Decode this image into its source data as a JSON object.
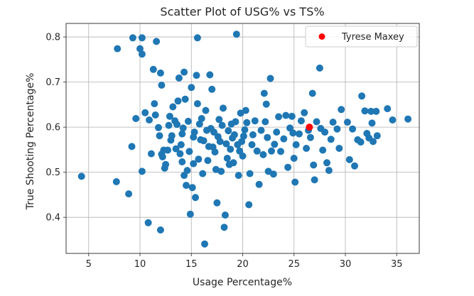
{
  "chart_data": {
    "type": "scatter",
    "title": "Scatter Plot of USG% vs TS%",
    "xlabel": "Usage Percentage%",
    "ylabel": "True Shooting Percentage%",
    "xlim": [
      2.8,
      37.2
    ],
    "ylim": [
      0.32,
      0.83
    ],
    "xticks": [
      5,
      10,
      15,
      20,
      25,
      30,
      35
    ],
    "yticks": [
      0.4,
      0.5,
      0.6,
      0.7,
      0.8
    ],
    "grid": true,
    "legend_position": "top-right",
    "colors": {
      "base": "#1f77b4",
      "highlight": "#ff0000"
    },
    "series": [
      {
        "values": [
          [
            4.3,
            0.491
          ],
          [
            7.7,
            0.479
          ],
          [
            7.8,
            0.774
          ],
          [
            8.9,
            0.452
          ],
          [
            9.2,
            0.557
          ],
          [
            9.3,
            0.798
          ],
          [
            9.6,
            0.619
          ],
          [
            10.0,
            0.774
          ],
          [
            10.2,
            0.798
          ],
          [
            10.2,
            0.762
          ],
          [
            10.2,
            0.502
          ],
          [
            10.5,
            0.632
          ],
          [
            10.8,
            0.388
          ],
          [
            10.9,
            0.616
          ],
          [
            11.1,
            0.541
          ],
          [
            11.3,
            0.728
          ],
          [
            11.4,
            0.652
          ],
          [
            11.6,
            0.79
          ],
          [
            11.5,
            0.627
          ],
          [
            11.8,
            0.599
          ],
          [
            11.9,
            0.581
          ],
          [
            12.0,
            0.72
          ],
          [
            12.1,
            0.693
          ],
          [
            12.1,
            0.54
          ],
          [
            12.0,
            0.372
          ],
          [
            12.2,
            0.534
          ],
          [
            12.3,
            0.549
          ],
          [
            12.4,
            0.509
          ],
          [
            12.5,
            0.517
          ],
          [
            12.7,
            0.549
          ],
          [
            12.8,
            0.604
          ],
          [
            12.9,
            0.624
          ],
          [
            13.0,
            0.571
          ],
          [
            13.1,
            0.581
          ],
          [
            13.2,
            0.645
          ],
          [
            13.4,
            0.614
          ],
          [
            13.5,
            0.552
          ],
          [
            13.6,
            0.606
          ],
          [
            13.7,
            0.658
          ],
          [
            13.8,
            0.709
          ],
          [
            13.9,
            0.541
          ],
          [
            14.0,
            0.561
          ],
          [
            14.1,
            0.585
          ],
          [
            14.1,
            0.523
          ],
          [
            14.2,
            0.598
          ],
          [
            14.3,
            0.722
          ],
          [
            14.3,
            0.493
          ],
          [
            14.4,
            0.662
          ],
          [
            14.5,
            0.471
          ],
          [
            14.6,
            0.504
          ],
          [
            14.7,
            0.613
          ],
          [
            14.8,
            0.546
          ],
          [
            14.9,
            0.407
          ],
          [
            15.0,
            0.688
          ],
          [
            15.1,
            0.466
          ],
          [
            15.2,
            0.578
          ],
          [
            15.2,
            0.519
          ],
          [
            15.3,
            0.589
          ],
          [
            15.4,
            0.444
          ],
          [
            15.5,
            0.715
          ],
          [
            15.6,
            0.798
          ],
          [
            15.6,
            0.652
          ],
          [
            15.7,
            0.529
          ],
          [
            15.8,
            0.607
          ],
          [
            15.9,
            0.572
          ],
          [
            16.0,
            0.619
          ],
          [
            16.1,
            0.497
          ],
          [
            16.2,
            0.57
          ],
          [
            16.3,
            0.341
          ],
          [
            16.4,
            0.637
          ],
          [
            16.5,
            0.593
          ],
          [
            16.6,
            0.526
          ],
          [
            16.7,
            0.557
          ],
          [
            16.8,
            0.716
          ],
          [
            16.9,
            0.597
          ],
          [
            17.0,
            0.684
          ],
          [
            17.1,
            0.556
          ],
          [
            17.2,
            0.589
          ],
          [
            17.3,
            0.545
          ],
          [
            17.4,
            0.506
          ],
          [
            17.5,
            0.432
          ],
          [
            17.6,
            0.579
          ],
          [
            17.7,
            0.617
          ],
          [
            17.8,
            0.568
          ],
          [
            17.9,
            0.502
          ],
          [
            18.0,
            0.604
          ],
          [
            18.1,
            0.642
          ],
          [
            18.2,
            0.378
          ],
          [
            18.3,
            0.405
          ],
          [
            18.4,
            0.563
          ],
          [
            18.5,
            0.531
          ],
          [
            18.6,
            0.592
          ],
          [
            18.7,
            0.517
          ],
          [
            18.8,
            0.551
          ],
          [
            18.9,
            0.607
          ],
          [
            19.0,
            0.576
          ],
          [
            19.1,
            0.521
          ],
          [
            19.2,
            0.583
          ],
          [
            19.3,
            0.612
          ],
          [
            19.4,
            0.806
          ],
          [
            19.5,
            0.561
          ],
          [
            19.6,
            0.493
          ],
          [
            19.7,
            0.547
          ],
          [
            19.8,
            0.631
          ],
          [
            19.9,
            0.568
          ],
          [
            20.0,
            0.536
          ],
          [
            20.1,
            0.58
          ],
          [
            20.2,
            0.594
          ],
          [
            20.3,
            0.637
          ],
          [
            20.4,
            0.61
          ],
          [
            20.6,
            0.428
          ],
          [
            20.7,
            0.497
          ],
          [
            20.9,
            0.561
          ],
          [
            21.0,
            0.583
          ],
          [
            21.2,
            0.614
          ],
          [
            21.4,
            0.547
          ],
          [
            21.6,
            0.473
          ],
          [
            21.8,
            0.593
          ],
          [
            22.0,
            0.539
          ],
          [
            22.1,
            0.675
          ],
          [
            22.2,
            0.612
          ],
          [
            22.3,
            0.651
          ],
          [
            22.4,
            0.577
          ],
          [
            22.5,
            0.502
          ],
          [
            22.7,
            0.708
          ],
          [
            22.8,
            0.547
          ],
          [
            23.0,
            0.496
          ],
          [
            23.1,
            0.562
          ],
          [
            23.3,
            0.589
          ],
          [
            23.5,
            0.623
          ],
          [
            23.7,
            0.546
          ],
          [
            24.0,
            0.574
          ],
          [
            24.2,
            0.626
          ],
          [
            24.4,
            0.511
          ],
          [
            24.6,
            0.598
          ],
          [
            24.8,
            0.624
          ],
          [
            24.9,
            0.587
          ],
          [
            25.0,
            0.531
          ],
          [
            25.1,
            0.478
          ],
          [
            25.2,
            0.561
          ],
          [
            25.5,
            0.585
          ],
          [
            25.7,
            0.614
          ],
          [
            26.0,
            0.632
          ],
          [
            26.2,
            0.553
          ],
          [
            26.4,
            0.593
          ],
          [
            26.6,
            0.577
          ],
          [
            26.8,
            0.675
          ],
          [
            26.9,
            0.516
          ],
          [
            27.0,
            0.483
          ],
          [
            27.2,
            0.612
          ],
          [
            27.5,
            0.731
          ],
          [
            27.6,
            0.597
          ],
          [
            27.8,
            0.549
          ],
          [
            28.0,
            0.589
          ],
          [
            28.2,
            0.521
          ],
          [
            28.4,
            0.504
          ],
          [
            28.6,
            0.573
          ],
          [
            28.8,
            0.611
          ],
          [
            29.2,
            0.596
          ],
          [
            29.4,
            0.553
          ],
          [
            29.6,
            0.639
          ],
          [
            30.2,
            0.611
          ],
          [
            30.4,
            0.528
          ],
          [
            30.7,
            0.596
          ],
          [
            30.9,
            0.514
          ],
          [
            31.2,
            0.572
          ],
          [
            31.5,
            0.567
          ],
          [
            31.6,
            0.669
          ],
          [
            31.9,
            0.636
          ],
          [
            32.1,
            0.586
          ],
          [
            32.3,
            0.576
          ],
          [
            32.5,
            0.635
          ],
          [
            32.6,
            0.609
          ],
          [
            32.7,
            0.568
          ],
          [
            33.0,
            0.635
          ],
          [
            33.1,
            0.581
          ],
          [
            34.1,
            0.641
          ],
          [
            34.6,
            0.616
          ],
          [
            36.1,
            0.618
          ]
        ]
      },
      {
        "name": "Tyrese Maxey",
        "highlight": true,
        "values": [
          [
            26.5,
            0.6
          ]
        ]
      }
    ]
  }
}
